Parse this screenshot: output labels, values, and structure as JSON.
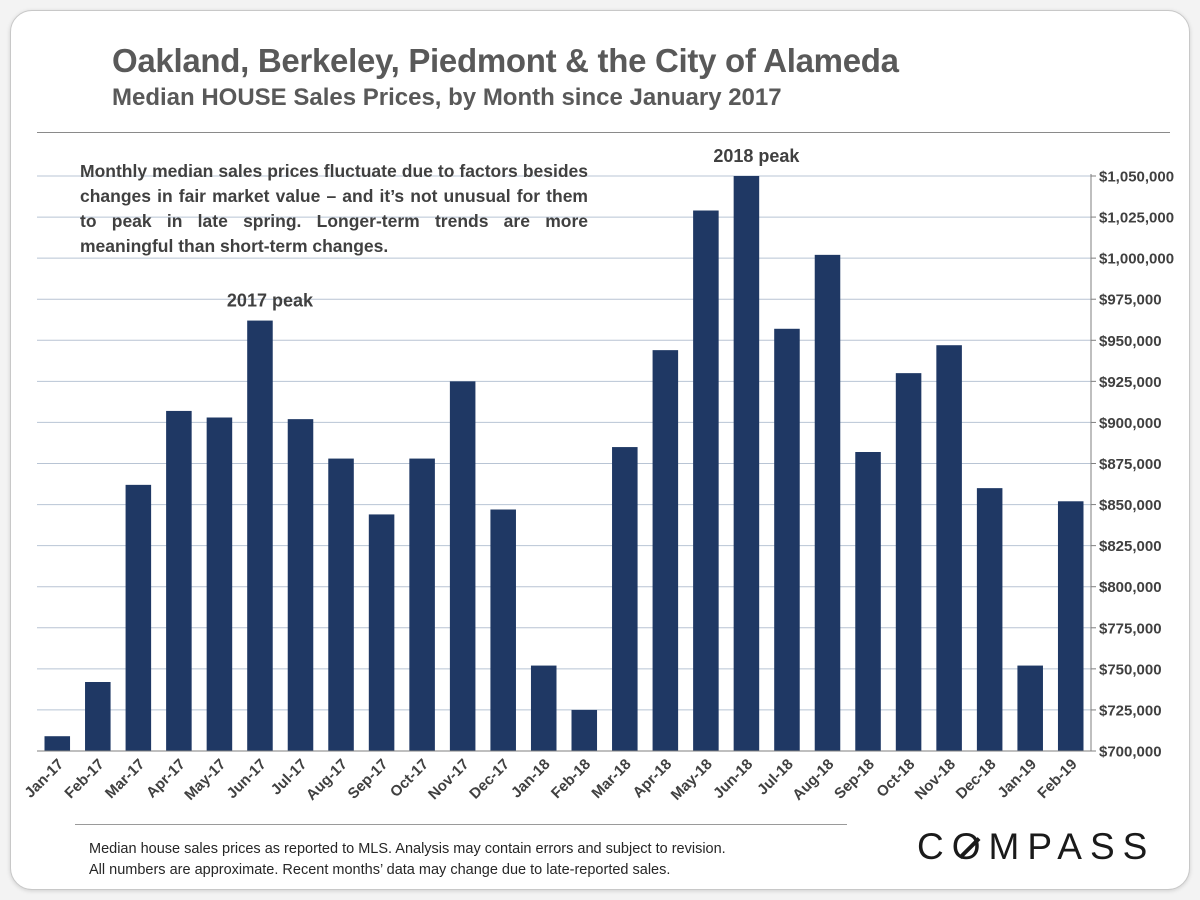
{
  "header": {
    "title": "Oakland, Berkeley, Piedmont & the City of Alameda",
    "subtitle": "Median HOUSE Sales Prices, by Month since January 2017"
  },
  "annotation": {
    "note": "Monthly median sales prices fluctuate due to factors besides changes in fair market value – and it’s not unusual for them to peak in late spring. Longer-term trends are more meaningful than short-term changes."
  },
  "footer": {
    "line1": "Median house sales prices as reported to MLS.  Analysis may contain errors and subject to revision.",
    "line2": "All numbers are approximate. Recent months’ data may change due to late-reported sales."
  },
  "logo": {
    "text": "COMPASS"
  },
  "colors": {
    "bar": "#1f3864",
    "grid": "#b8c4d4",
    "text": "#404040"
  },
  "chart_data": {
    "type": "bar",
    "title": "Oakland, Berkeley, Piedmont & the City of Alameda",
    "subtitle": "Median HOUSE Sales Prices, by Month since January 2017",
    "xlabel": "",
    "ylabel": "",
    "y_axis_position": "right",
    "grid": true,
    "ylim": [
      700000,
      1050000
    ],
    "yticks": [
      700000,
      725000,
      750000,
      775000,
      800000,
      825000,
      850000,
      875000,
      900000,
      925000,
      950000,
      975000,
      1000000,
      1025000,
      1050000
    ],
    "ytick_labels": [
      "$700,000",
      "$725,000",
      "$750,000",
      "$775,000",
      "$800,000",
      "$825,000",
      "$850,000",
      "$875,000",
      "$900,000",
      "$925,000",
      "$950,000",
      "$975,000",
      "$1,000,000",
      "$1,025,000",
      "$1,050,000"
    ],
    "categories": [
      "Jan-17",
      "Feb-17",
      "Mar-17",
      "Apr-17",
      "May-17",
      "Jun-17",
      "Jul-17",
      "Aug-17",
      "Sep-17",
      "Oct-17",
      "Nov-17",
      "Dec-17",
      "Jan-18",
      "Feb-18",
      "Mar-18",
      "Apr-18",
      "May-18",
      "Jun-18",
      "Jul-18",
      "Aug-18",
      "Sep-18",
      "Oct-18",
      "Nov-18",
      "Dec-18",
      "Jan-19",
      "Feb-19"
    ],
    "values": [
      709000,
      742000,
      862000,
      907000,
      903000,
      962000,
      902000,
      878000,
      844000,
      878000,
      925000,
      847000,
      752000,
      725000,
      885000,
      944000,
      1029000,
      1050000,
      957000,
      1002000,
      882000,
      930000,
      947000,
      860000,
      752000,
      852000
    ],
    "annotations": [
      {
        "text": "2017 peak",
        "category": "Jun-17"
      },
      {
        "text": "2018 peak",
        "category": "Jun-18"
      }
    ]
  }
}
